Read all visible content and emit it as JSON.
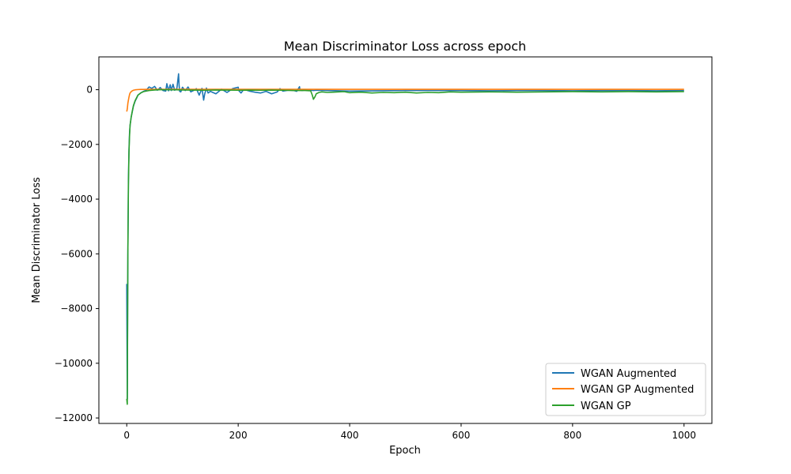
{
  "chart_data": {
    "type": "line",
    "title": "Mean Discriminator Loss across epoch",
    "xlabel": "Epoch",
    "ylabel": "Mean Discriminator Loss",
    "xlim": [
      -50,
      1050
    ],
    "ylim": [
      -12200,
      1200
    ],
    "xticks": [
      0,
      200,
      400,
      600,
      800,
      1000
    ],
    "yticks": [
      0,
      -2000,
      -4000,
      -6000,
      -8000,
      -10000,
      -12000
    ],
    "xtick_labels": [
      "0",
      "200",
      "400",
      "600",
      "800",
      "1000"
    ],
    "ytick_labels": [
      "0",
      "−2000",
      "−4000",
      "−6000",
      "−8000",
      "−10000",
      "−12000"
    ],
    "grid": false,
    "legend_position": "bottom-right",
    "series": [
      {
        "name": "WGAN Augmented",
        "color": "#1f77b4",
        "x": [
          0,
          1,
          2,
          3,
          4,
          5,
          6,
          8,
          10,
          12,
          15,
          18,
          20,
          25,
          30,
          35,
          40,
          45,
          50,
          55,
          60,
          65,
          70,
          72,
          75,
          78,
          80,
          83,
          86,
          90,
          93,
          94,
          95,
          97,
          100,
          105,
          110,
          115,
          120,
          125,
          130,
          135,
          138,
          140,
          143,
          146,
          150,
          160,
          170,
          180,
          190,
          200,
          201,
          205,
          210,
          220,
          230,
          240,
          250,
          260,
          270,
          275,
          280,
          290,
          300,
          305,
          310,
          311,
          315,
          320,
          330,
          335,
          340,
          360,
          380,
          400,
          450,
          500,
          550,
          600,
          650,
          700,
          750,
          800,
          850,
          900,
          950,
          1000
        ],
        "y": [
          -7100,
          -11300,
          -6000,
          -3300,
          -2200,
          -1600,
          -1300,
          -1000,
          -800,
          -600,
          -420,
          -300,
          -200,
          -120,
          -60,
          -20,
          100,
          50,
          120,
          -20,
          80,
          -30,
          -50,
          220,
          -40,
          180,
          -30,
          200,
          -20,
          50,
          580,
          150,
          -60,
          -80,
          90,
          -30,
          100,
          -80,
          -30,
          40,
          -200,
          50,
          -380,
          -150,
          60,
          -120,
          -60,
          -150,
          20,
          -100,
          40,
          90,
          -30,
          -120,
          10,
          -50,
          -90,
          -120,
          -60,
          -150,
          -80,
          40,
          -50,
          -20,
          -30,
          -60,
          110,
          -20,
          -30,
          -10,
          -20,
          -30,
          -20,
          -30,
          -40,
          -50,
          -40,
          -30,
          -30,
          -30,
          -40,
          -30,
          -30,
          -40,
          -30,
          -30,
          -40,
          -30
        ]
      },
      {
        "name": "WGAN GP Augmented",
        "color": "#ff7f0e",
        "x": [
          0,
          1,
          2,
          3,
          4,
          5,
          6,
          8,
          10,
          12,
          15,
          20,
          25,
          30,
          40,
          50,
          60,
          80,
          100,
          150,
          200,
          300,
          400,
          500,
          600,
          700,
          800,
          900,
          1000
        ],
        "y": [
          -800,
          -700,
          -500,
          -380,
          -270,
          -180,
          -120,
          -70,
          -40,
          -20,
          -5,
          5,
          10,
          10,
          15,
          15,
          15,
          15,
          15,
          15,
          15,
          15,
          15,
          15,
          15,
          15,
          15,
          15,
          15
        ]
      },
      {
        "name": "WGAN GP",
        "color": "#2ca02c",
        "x": [
          0,
          1,
          2,
          3,
          4,
          5,
          6,
          8,
          10,
          12,
          15,
          18,
          20,
          25,
          30,
          40,
          50,
          60,
          70,
          80,
          90,
          100,
          120,
          140,
          160,
          180,
          200,
          220,
          240,
          260,
          280,
          300,
          320,
          330,
          333,
          335,
          338,
          340,
          345,
          350,
          360,
          370,
          380,
          390,
          400,
          420,
          440,
          460,
          480,
          500,
          520,
          540,
          560,
          580,
          600,
          650,
          700,
          750,
          800,
          850,
          900,
          950,
          1000
        ],
        "y": [
          -11300,
          -11500,
          -6000,
          -3500,
          -2300,
          -1700,
          -1300,
          -1000,
          -780,
          -580,
          -400,
          -280,
          -200,
          -120,
          -70,
          -30,
          -10,
          0,
          0,
          -5,
          -5,
          -10,
          -15,
          -20,
          -10,
          -15,
          -20,
          -15,
          -20,
          -15,
          -20,
          -30,
          -30,
          -40,
          -200,
          -350,
          -250,
          -150,
          -100,
          -80,
          -100,
          -90,
          -80,
          -70,
          -110,
          -90,
          -120,
          -100,
          -110,
          -90,
          -120,
          -100,
          -110,
          -80,
          -90,
          -80,
          -90,
          -80,
          -70,
          -80,
          -70,
          -80,
          -70
        ]
      }
    ]
  }
}
